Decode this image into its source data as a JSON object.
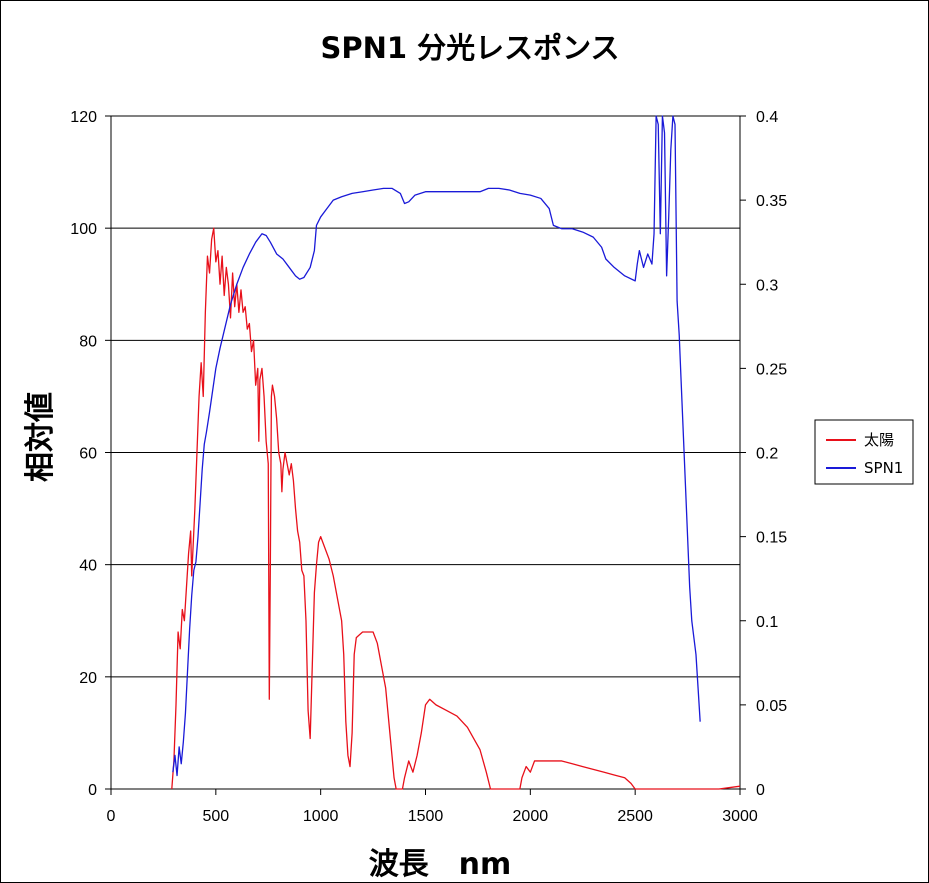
{
  "chart_data": {
    "type": "line",
    "title": "SPN1 分光レスポンス",
    "xlabel": "波長　nm",
    "ylabel": "相対値",
    "xlim": [
      0,
      3000
    ],
    "ylim": [
      0,
      120
    ],
    "y2lim": [
      0,
      0.4
    ],
    "x_ticks": [
      "0",
      "500",
      "1000",
      "1500",
      "2000",
      "2500",
      "3000"
    ],
    "y_ticks": [
      "0",
      "20",
      "40",
      "60",
      "80",
      "100",
      "120"
    ],
    "y2_ticks": [
      "0",
      "0.05",
      "0.1",
      "0.15",
      "0.2",
      "0.25",
      "0.3",
      "0.35",
      "0.4"
    ],
    "grid": "horizontal",
    "legend_position": "right",
    "series": [
      {
        "name": "太陽",
        "color": "#e8101a",
        "axis": "left",
        "points": [
          [
            290,
            0
          ],
          [
            300,
            5
          ],
          [
            310,
            15
          ],
          [
            320,
            28
          ],
          [
            330,
            25
          ],
          [
            340,
            32
          ],
          [
            350,
            30
          ],
          [
            360,
            36
          ],
          [
            370,
            42
          ],
          [
            380,
            46
          ],
          [
            385,
            38
          ],
          [
            390,
            42
          ],
          [
            400,
            50
          ],
          [
            410,
            60
          ],
          [
            420,
            70
          ],
          [
            430,
            76
          ],
          [
            440,
            70
          ],
          [
            450,
            85
          ],
          [
            460,
            95
          ],
          [
            470,
            92
          ],
          [
            480,
            98
          ],
          [
            490,
            100
          ],
          [
            500,
            94
          ],
          [
            510,
            96
          ],
          [
            520,
            90
          ],
          [
            530,
            95
          ],
          [
            540,
            88
          ],
          [
            550,
            93
          ],
          [
            560,
            90
          ],
          [
            570,
            84
          ],
          [
            580,
            92
          ],
          [
            590,
            86
          ],
          [
            600,
            90
          ],
          [
            610,
            85
          ],
          [
            620,
            89
          ],
          [
            630,
            85
          ],
          [
            640,
            86
          ],
          [
            650,
            82
          ],
          [
            660,
            83
          ],
          [
            670,
            78
          ],
          [
            680,
            80
          ],
          [
            690,
            72
          ],
          [
            700,
            75
          ],
          [
            705,
            62
          ],
          [
            710,
            73
          ],
          [
            720,
            75
          ],
          [
            730,
            70
          ],
          [
            740,
            62
          ],
          [
            750,
            58
          ],
          [
            755,
            16
          ],
          [
            760,
            40
          ],
          [
            765,
            70
          ],
          [
            770,
            72
          ],
          [
            780,
            70
          ],
          [
            790,
            66
          ],
          [
            800,
            60
          ],
          [
            810,
            58
          ],
          [
            815,
            53
          ],
          [
            820,
            57
          ],
          [
            830,
            60
          ],
          [
            840,
            58
          ],
          [
            850,
            56
          ],
          [
            860,
            58
          ],
          [
            870,
            55
          ],
          [
            880,
            50
          ],
          [
            890,
            46
          ],
          [
            900,
            44
          ],
          [
            910,
            39
          ],
          [
            920,
            38
          ],
          [
            930,
            30
          ],
          [
            940,
            14
          ],
          [
            950,
            9
          ],
          [
            960,
            22
          ],
          [
            970,
            35
          ],
          [
            980,
            40
          ],
          [
            990,
            44
          ],
          [
            1000,
            45
          ],
          [
            1020,
            43
          ],
          [
            1040,
            41
          ],
          [
            1060,
            38
          ],
          [
            1080,
            34
          ],
          [
            1100,
            30
          ],
          [
            1110,
            24
          ],
          [
            1120,
            12
          ],
          [
            1130,
            6
          ],
          [
            1140,
            4
          ],
          [
            1150,
            10
          ],
          [
            1160,
            24
          ],
          [
            1170,
            27
          ],
          [
            1200,
            28
          ],
          [
            1250,
            28
          ],
          [
            1270,
            26
          ],
          [
            1290,
            22
          ],
          [
            1310,
            18
          ],
          [
            1330,
            10
          ],
          [
            1350,
            2
          ],
          [
            1360,
            0
          ],
          [
            1380,
            0
          ],
          [
            1390,
            0
          ],
          [
            1400,
            2
          ],
          [
            1420,
            5
          ],
          [
            1440,
            3
          ],
          [
            1460,
            6
          ],
          [
            1480,
            10
          ],
          [
            1500,
            15
          ],
          [
            1520,
            16
          ],
          [
            1550,
            15
          ],
          [
            1600,
            14
          ],
          [
            1650,
            13
          ],
          [
            1700,
            11
          ],
          [
            1730,
            9
          ],
          [
            1760,
            7
          ],
          [
            1790,
            3
          ],
          [
            1810,
            0
          ],
          [
            1850,
            0
          ],
          [
            1900,
            0
          ],
          [
            1950,
            0
          ],
          [
            1960,
            2
          ],
          [
            1980,
            4
          ],
          [
            2000,
            3
          ],
          [
            2020,
            5
          ],
          [
            2050,
            5
          ],
          [
            2100,
            5
          ],
          [
            2150,
            5
          ],
          [
            2200,
            4.5
          ],
          [
            2250,
            4
          ],
          [
            2300,
            3.5
          ],
          [
            2350,
            3
          ],
          [
            2400,
            2.5
          ],
          [
            2450,
            2
          ],
          [
            2480,
            1
          ],
          [
            2500,
            0
          ],
          [
            2600,
            0
          ],
          [
            2700,
            0
          ],
          [
            2800,
            0
          ],
          [
            2900,
            0
          ],
          [
            2960,
            0.3
          ],
          [
            3000,
            0.5
          ]
        ]
      },
      {
        "name": "SPN1",
        "color": "#1a1ad8",
        "axis": "right",
        "points": [
          [
            295,
            0.01
          ],
          [
            305,
            0.02
          ],
          [
            315,
            0.008
          ],
          [
            325,
            0.025
          ],
          [
            335,
            0.015
          ],
          [
            345,
            0.028
          ],
          [
            355,
            0.045
          ],
          [
            365,
            0.07
          ],
          [
            375,
            0.095
          ],
          [
            385,
            0.115
          ],
          [
            395,
            0.13
          ],
          [
            405,
            0.135
          ],
          [
            415,
            0.15
          ],
          [
            425,
            0.17
          ],
          [
            435,
            0.19
          ],
          [
            445,
            0.205
          ],
          [
            455,
            0.212
          ],
          [
            470,
            0.224
          ],
          [
            485,
            0.237
          ],
          [
            500,
            0.25
          ],
          [
            520,
            0.262
          ],
          [
            545,
            0.275
          ],
          [
            570,
            0.288
          ],
          [
            600,
            0.3
          ],
          [
            630,
            0.31
          ],
          [
            660,
            0.318
          ],
          [
            690,
            0.325
          ],
          [
            720,
            0.33
          ],
          [
            740,
            0.329
          ],
          [
            760,
            0.325
          ],
          [
            790,
            0.318
          ],
          [
            820,
            0.315
          ],
          [
            850,
            0.31
          ],
          [
            880,
            0.305
          ],
          [
            900,
            0.303
          ],
          [
            920,
            0.304
          ],
          [
            950,
            0.31
          ],
          [
            970,
            0.32
          ],
          [
            980,
            0.335
          ],
          [
            1000,
            0.34
          ],
          [
            1030,
            0.345
          ],
          [
            1060,
            0.35
          ],
          [
            1100,
            0.352
          ],
          [
            1150,
            0.354
          ],
          [
            1200,
            0.355
          ],
          [
            1250,
            0.356
          ],
          [
            1300,
            0.357
          ],
          [
            1340,
            0.357
          ],
          [
            1380,
            0.354
          ],
          [
            1400,
            0.348
          ],
          [
            1420,
            0.349
          ],
          [
            1450,
            0.353
          ],
          [
            1500,
            0.355
          ],
          [
            1600,
            0.355
          ],
          [
            1700,
            0.355
          ],
          [
            1760,
            0.355
          ],
          [
            1800,
            0.357
          ],
          [
            1850,
            0.357
          ],
          [
            1900,
            0.356
          ],
          [
            1950,
            0.354
          ],
          [
            2000,
            0.353
          ],
          [
            2050,
            0.351
          ],
          [
            2090,
            0.345
          ],
          [
            2110,
            0.335
          ],
          [
            2150,
            0.333
          ],
          [
            2200,
            0.333
          ],
          [
            2250,
            0.331
          ],
          [
            2300,
            0.328
          ],
          [
            2340,
            0.322
          ],
          [
            2360,
            0.315
          ],
          [
            2400,
            0.31
          ],
          [
            2450,
            0.305
          ],
          [
            2500,
            0.302
          ],
          [
            2510,
            0.312
          ],
          [
            2520,
            0.32
          ],
          [
            2540,
            0.31
          ],
          [
            2560,
            0.318
          ],
          [
            2580,
            0.312
          ],
          [
            2590,
            0.33
          ],
          [
            2600,
            0.4
          ],
          [
            2610,
            0.395
          ],
          [
            2620,
            0.33
          ],
          [
            2630,
            0.4
          ],
          [
            2640,
            0.39
          ],
          [
            2650,
            0.305
          ],
          [
            2660,
            0.34
          ],
          [
            2670,
            0.38
          ],
          [
            2680,
            0.4
          ],
          [
            2690,
            0.395
          ],
          [
            2700,
            0.29
          ],
          [
            2710,
            0.27
          ],
          [
            2720,
            0.24
          ],
          [
            2730,
            0.21
          ],
          [
            2740,
            0.18
          ],
          [
            2750,
            0.15
          ],
          [
            2760,
            0.12
          ],
          [
            2770,
            0.1
          ],
          [
            2780,
            0.09
          ],
          [
            2790,
            0.08
          ],
          [
            2800,
            0.06
          ],
          [
            2810,
            0.04
          ]
        ]
      }
    ]
  }
}
